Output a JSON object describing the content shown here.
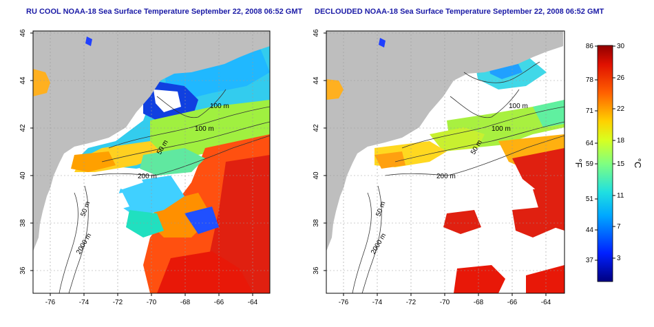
{
  "titles": {
    "left": "RU COOL NOAA-18 Sea Surface Temperature September 22, 2008 06:52 GMT",
    "right": "DECLOUDED NOAA-18 Sea Surface Temperature September 22, 2008 06:52 GMT"
  },
  "axes": {
    "longitude_ticks": [
      "-76",
      "-74",
      "-72",
      "-70",
      "-68",
      "-66",
      "-64"
    ],
    "latitude_ticks": [
      "46",
      "44",
      "42",
      "40",
      "38",
      "36"
    ]
  },
  "contour_labels": {
    "left": [
      "100 m",
      "100 m",
      "50 m",
      "200 m",
      "50 m",
      "2000 m"
    ],
    "right": [
      "100 m",
      "100 m",
      "50 m",
      "200 m",
      "50 m",
      "2000 m"
    ]
  },
  "colorbar": {
    "fahrenheit_ticks": [
      "86",
      "78",
      "71",
      "64",
      "59",
      "51",
      "44",
      "37"
    ],
    "celsius_ticks": [
      "30",
      "26",
      "22",
      "18",
      "15",
      "11",
      "7",
      "3"
    ],
    "unit_f": "°F",
    "unit_c": "°C"
  },
  "colors": {
    "land": "#bebebe",
    "no_data": "#ffffff",
    "title": "#1a1aa6"
  }
}
